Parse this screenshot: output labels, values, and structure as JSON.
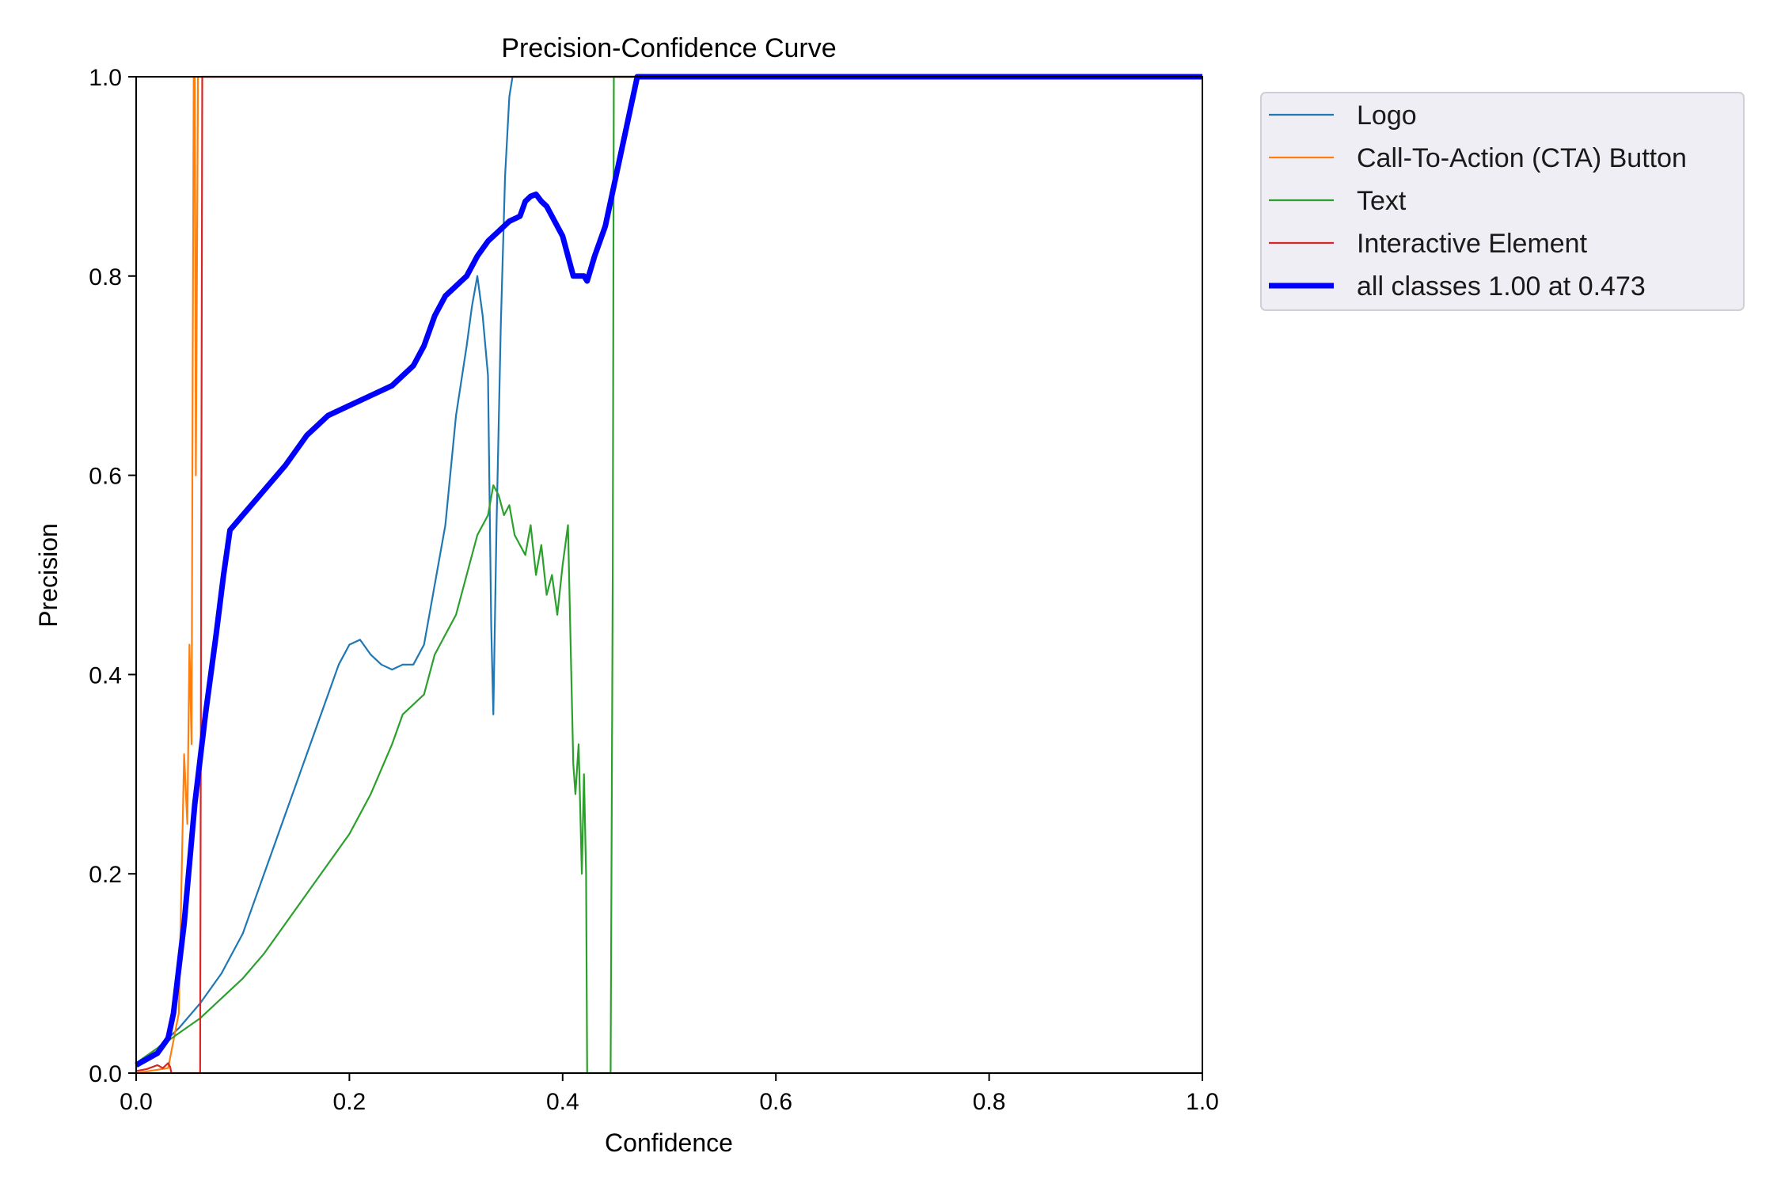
{
  "chart_data": {
    "type": "line",
    "title": "Precision-Confidence Curve",
    "xlabel": "Confidence",
    "ylabel": "Precision",
    "xlim": [
      0,
      1
    ],
    "ylim": [
      0,
      1
    ],
    "xticks": [
      "0.0",
      "0.2",
      "0.4",
      "0.6",
      "0.8",
      "1.0"
    ],
    "yticks": [
      "0.0",
      "0.2",
      "0.4",
      "0.6",
      "0.8",
      "1.0"
    ],
    "grid": false,
    "legend_position": "outside-top-right",
    "series": [
      {
        "name": "Logo",
        "color": "#1f77b4",
        "width": 1,
        "x": [
          0,
          0.02,
          0.04,
          0.06,
          0.08,
          0.1,
          0.12,
          0.14,
          0.16,
          0.18,
          0.19,
          0.2,
          0.21,
          0.22,
          0.23,
          0.24,
          0.25,
          0.26,
          0.27,
          0.28,
          0.29,
          0.3,
          0.31,
          0.315,
          0.32,
          0.325,
          0.33,
          0.333,
          0.335,
          0.338,
          0.342,
          0.346,
          0.35,
          0.353,
          0.36,
          0.45,
          0.6,
          0.8,
          1.0
        ],
        "y": [
          0.01,
          0.025,
          0.045,
          0.07,
          0.1,
          0.14,
          0.2,
          0.26,
          0.32,
          0.38,
          0.41,
          0.43,
          0.435,
          0.42,
          0.41,
          0.405,
          0.41,
          0.41,
          0.43,
          0.49,
          0.55,
          0.66,
          0.73,
          0.77,
          0.8,
          0.76,
          0.7,
          0.45,
          0.36,
          0.55,
          0.75,
          0.9,
          0.98,
          1.0,
          1.0,
          1.0,
          1.0,
          1.0,
          1.0
        ]
      },
      {
        "name": "Call-To-Action (CTA) Button",
        "color": "#ff7f0e",
        "width": 1,
        "x": [
          0,
          0.03,
          0.04,
          0.045,
          0.048,
          0.05,
          0.052,
          0.053,
          0.054,
          0.055,
          0.056,
          0.058,
          1.0
        ],
        "y": [
          0.0,
          0.005,
          0.06,
          0.32,
          0.25,
          0.43,
          0.33,
          0.7,
          1.0,
          1.0,
          0.6,
          1.0,
          1.0
        ]
      },
      {
        "name": "Text",
        "color": "#2ca02c",
        "width": 1,
        "x": [
          0,
          0.02,
          0.04,
          0.06,
          0.08,
          0.1,
          0.12,
          0.14,
          0.16,
          0.18,
          0.2,
          0.22,
          0.24,
          0.25,
          0.26,
          0.27,
          0.28,
          0.29,
          0.3,
          0.31,
          0.32,
          0.33,
          0.335,
          0.34,
          0.345,
          0.35,
          0.355,
          0.36,
          0.365,
          0.37,
          0.375,
          0.38,
          0.385,
          0.39,
          0.395,
          0.4,
          0.405,
          0.41,
          0.412,
          0.415,
          0.418,
          0.42,
          0.422,
          0.423,
          0.425,
          0.445,
          0.447,
          0.448,
          0.45,
          0.6,
          0.8,
          1.0
        ],
        "y": [
          0.01,
          0.025,
          0.04,
          0.055,
          0.075,
          0.095,
          0.12,
          0.15,
          0.18,
          0.21,
          0.24,
          0.28,
          0.33,
          0.36,
          0.37,
          0.38,
          0.42,
          0.44,
          0.46,
          0.5,
          0.54,
          0.56,
          0.59,
          0.58,
          0.56,
          0.57,
          0.54,
          0.53,
          0.52,
          0.55,
          0.5,
          0.53,
          0.48,
          0.5,
          0.46,
          0.51,
          0.55,
          0.31,
          0.28,
          0.33,
          0.2,
          0.3,
          0.2,
          0.0,
          0.0,
          0.0,
          0.5,
          1.0,
          1.0,
          1.0,
          1.0,
          1.0
        ]
      },
      {
        "name": "Interactive Element",
        "color": "#d62728",
        "width": 1,
        "x": [
          0,
          0.01,
          0.02,
          0.025,
          0.03,
          0.032,
          0.033,
          0.06,
          0.061,
          0.062,
          1.0
        ],
        "y": [
          0.002,
          0.004,
          0.008,
          0.005,
          0.01,
          0.006,
          0.0,
          0.0,
          0.5,
          1.0,
          1.0
        ]
      },
      {
        "name": "all classes 1.00 at 0.473",
        "color": "#0000ff",
        "width": 3,
        "x": [
          0,
          0.02,
          0.03,
          0.035,
          0.045,
          0.055,
          0.065,
          0.075,
          0.082,
          0.088,
          0.1,
          0.12,
          0.14,
          0.16,
          0.18,
          0.2,
          0.22,
          0.24,
          0.25,
          0.26,
          0.27,
          0.28,
          0.29,
          0.3,
          0.305,
          0.31,
          0.32,
          0.33,
          0.34,
          0.35,
          0.36,
          0.365,
          0.37,
          0.375,
          0.38,
          0.385,
          0.39,
          0.4,
          0.41,
          0.42,
          0.423,
          0.43,
          0.44,
          0.45,
          0.46,
          0.47,
          0.473,
          0.5,
          0.6,
          0.8,
          1.0
        ],
        "y": [
          0.008,
          0.02,
          0.035,
          0.06,
          0.15,
          0.27,
          0.36,
          0.44,
          0.5,
          0.545,
          0.56,
          0.585,
          0.61,
          0.64,
          0.66,
          0.67,
          0.68,
          0.69,
          0.7,
          0.71,
          0.73,
          0.76,
          0.78,
          0.79,
          0.795,
          0.8,
          0.82,
          0.835,
          0.845,
          0.855,
          0.86,
          0.875,
          0.88,
          0.882,
          0.875,
          0.87,
          0.86,
          0.84,
          0.8,
          0.8,
          0.795,
          0.82,
          0.85,
          0.9,
          0.95,
          1.0,
          1.0,
          1.0,
          1.0,
          1.0,
          1.0
        ]
      }
    ]
  }
}
